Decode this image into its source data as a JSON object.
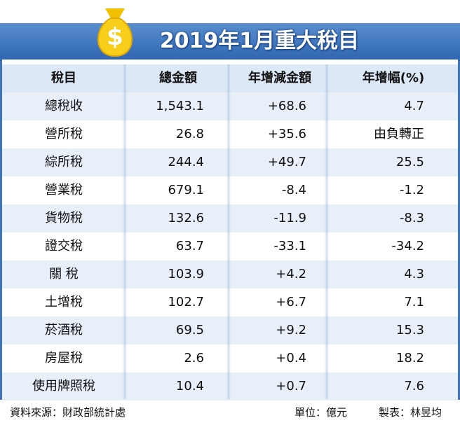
{
  "header": {
    "title": "2019年1月重大稅目"
  },
  "table": {
    "columns": [
      "稅目",
      "總金額",
      "年增減金額",
      "年增幅(%)"
    ],
    "rows": [
      [
        "總稅收",
        "1,543.1",
        "+68.6",
        "4.7"
      ],
      [
        "營所稅",
        "26.8",
        "+35.6",
        "由負轉正"
      ],
      [
        "綜所稅",
        "244.4",
        "+49.7",
        "25.5"
      ],
      [
        "營業稅",
        "679.1",
        "-8.4",
        "-1.2"
      ],
      [
        "貨物稅",
        "132.6",
        "-11.9",
        "-8.3"
      ],
      [
        "證交稅",
        "63.7",
        "-33.1",
        "-34.2"
      ],
      [
        "關 稅",
        "103.9",
        "+4.2",
        "4.3"
      ],
      [
        "土增稅",
        "102.7",
        "+6.7",
        "7.1"
      ],
      [
        "菸酒稅",
        "69.5",
        "+9.2",
        "15.3"
      ],
      [
        "房屋稅",
        "2.6",
        "+0.4",
        "18.2"
      ],
      [
        "使用牌照稅",
        "10.4",
        "+0.7",
        "7.6"
      ]
    ]
  },
  "footer": {
    "source": "資料來源：財政部統計處",
    "unit": "單位：億元",
    "maker": "製表：林昱均"
  }
}
